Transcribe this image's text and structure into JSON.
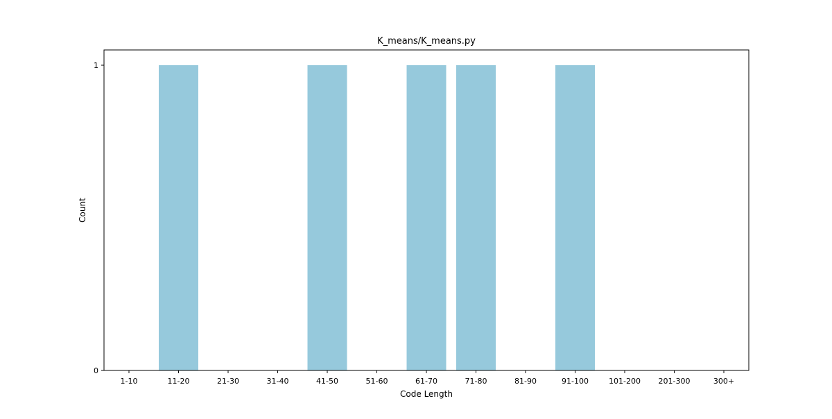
{
  "chart_data": {
    "type": "bar",
    "title": "K_means/K_means.py",
    "xlabel": "Code Length",
    "ylabel": "Count",
    "categories": [
      "1-10",
      "11-20",
      "21-30",
      "31-40",
      "41-50",
      "51-60",
      "61-70",
      "71-80",
      "81-90",
      "91-100",
      "101-200",
      "201-300",
      "300+"
    ],
    "values": [
      0,
      1,
      0,
      0,
      1,
      0,
      1,
      1,
      0,
      1,
      0,
      0,
      0
    ],
    "ylim": [
      0,
      1
    ],
    "yticks": [
      0,
      1
    ],
    "grid": false,
    "legend": "none",
    "bar_color": "#96c9dc"
  }
}
